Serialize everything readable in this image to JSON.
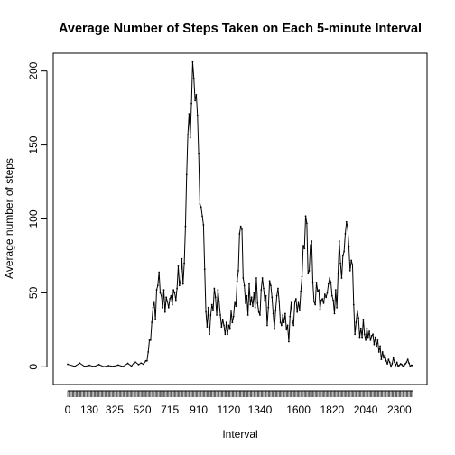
{
  "chart_data": {
    "type": "line",
    "title": "Average Number of Steps Taken on Each 5-minute Interval",
    "xlabel": "Interval",
    "ylabel": "Average number of steps",
    "ylim": [
      -12,
      212
    ],
    "yticks": [
      0,
      50,
      100,
      150,
      200
    ],
    "xtick_labels": [
      "0",
      "130",
      "325",
      "520",
      "715",
      "910",
      "1120",
      "1340",
      "1600",
      "1820",
      "2040",
      "2300"
    ],
    "xtick_positions": [
      1,
      19,
      40,
      63,
      86,
      110,
      135,
      161,
      193,
      221,
      249,
      277
    ],
    "n_intervals": 288,
    "line_color": "#000000",
    "grid": false,
    "series": [
      {
        "points": [
          [
            1,
            1.7
          ],
          [
            7,
            0.3
          ],
          [
            11,
            2.5
          ],
          [
            15,
            0.3
          ],
          [
            19,
            1
          ],
          [
            23,
            0.2
          ],
          [
            27,
            1.5
          ],
          [
            31,
            0.1
          ],
          [
            35,
            0.8
          ],
          [
            39,
            0.3
          ],
          [
            43,
            1.2
          ],
          [
            47,
            0.2
          ],
          [
            51,
            2.3
          ],
          [
            54,
            0.5
          ],
          [
            57,
            3.5
          ],
          [
            60,
            1.5
          ],
          [
            62,
            2.5
          ],
          [
            64,
            1.8
          ],
          [
            66,
            4
          ],
          [
            67,
            4
          ],
          [
            68,
            10
          ],
          [
            69,
            18
          ],
          [
            70,
            18
          ],
          [
            71,
            30
          ],
          [
            72,
            40
          ],
          [
            73,
            44
          ],
          [
            74,
            32
          ],
          [
            75,
            52
          ],
          [
            76,
            55
          ],
          [
            77,
            64
          ],
          [
            78,
            50
          ],
          [
            79,
            48
          ],
          [
            80,
            40
          ],
          [
            81,
            52
          ],
          [
            82,
            37
          ],
          [
            83,
            47
          ],
          [
            84,
            44
          ],
          [
            85,
            40
          ],
          [
            86,
            46
          ],
          [
            87,
            48
          ],
          [
            88,
            42
          ],
          [
            89,
            52
          ],
          [
            90,
            50
          ],
          [
            91,
            45
          ],
          [
            92,
            53
          ],
          [
            93,
            68
          ],
          [
            94,
            55
          ],
          [
            95,
            58
          ],
          [
            96,
            73
          ],
          [
            97,
            56
          ],
          [
            98,
            70
          ],
          [
            99,
            95
          ],
          [
            100,
            130
          ],
          [
            101,
            157
          ],
          [
            102,
            171
          ],
          [
            103,
            155
          ],
          [
            104,
            178
          ],
          [
            105,
            206
          ],
          [
            106,
            195
          ],
          [
            107,
            180
          ],
          [
            108,
            184
          ],
          [
            109,
            170
          ],
          [
            110,
            144
          ],
          [
            111,
            110
          ],
          [
            112,
            108
          ],
          [
            113,
            102
          ],
          [
            114,
            96
          ],
          [
            115,
            66
          ],
          [
            116,
            37
          ],
          [
            117,
            27
          ],
          [
            118,
            40
          ],
          [
            119,
            22
          ],
          [
            120,
            35
          ],
          [
            121,
            42
          ],
          [
            122,
            38
          ],
          [
            123,
            53
          ],
          [
            124,
            47
          ],
          [
            125,
            35
          ],
          [
            126,
            52
          ],
          [
            127,
            44
          ],
          [
            128,
            35
          ],
          [
            129,
            27
          ],
          [
            130,
            32
          ],
          [
            131,
            28
          ],
          [
            132,
            22
          ],
          [
            133,
            30
          ],
          [
            134,
            22
          ],
          [
            135,
            28
          ],
          [
            136,
            26
          ],
          [
            137,
            38
          ],
          [
            138,
            30
          ],
          [
            139,
            34
          ],
          [
            140,
            44
          ],
          [
            141,
            41
          ],
          [
            142,
            58
          ],
          [
            143,
            65
          ],
          [
            144,
            90
          ],
          [
            145,
            95
          ],
          [
            146,
            93
          ],
          [
            147,
            60
          ],
          [
            148,
            55
          ],
          [
            149,
            43
          ],
          [
            150,
            48
          ],
          [
            151,
            35
          ],
          [
            152,
            56
          ],
          [
            153,
            42
          ],
          [
            154,
            47
          ],
          [
            155,
            41
          ],
          [
            156,
            50
          ],
          [
            157,
            40
          ],
          [
            158,
            60
          ],
          [
            159,
            43
          ],
          [
            160,
            37
          ],
          [
            161,
            35
          ],
          [
            162,
            52
          ],
          [
            163,
            60
          ],
          [
            164,
            53
          ],
          [
            165,
            45
          ],
          [
            166,
            48
          ],
          [
            167,
            28
          ],
          [
            168,
            40
          ],
          [
            169,
            58
          ],
          [
            170,
            55
          ],
          [
            171,
            47
          ],
          [
            172,
            36
          ],
          [
            173,
            26
          ],
          [
            174,
            38
          ],
          [
            175,
            48
          ],
          [
            176,
            53
          ],
          [
            177,
            44
          ],
          [
            178,
            30
          ],
          [
            179,
            28
          ],
          [
            180,
            35
          ],
          [
            181,
            30
          ],
          [
            182,
            36
          ],
          [
            183,
            25
          ],
          [
            184,
            28
          ],
          [
            185,
            17
          ],
          [
            186,
            34
          ],
          [
            187,
            44
          ],
          [
            188,
            31
          ],
          [
            189,
            28
          ],
          [
            190,
            44
          ],
          [
            191,
            46
          ],
          [
            192,
            37
          ],
          [
            193,
            44
          ],
          [
            194,
            38
          ],
          [
            195,
            51
          ],
          [
            196,
            61
          ],
          [
            197,
            82
          ],
          [
            198,
            80
          ],
          [
            199,
            102
          ],
          [
            200,
            97
          ],
          [
            201,
            63
          ],
          [
            202,
            65
          ],
          [
            203,
            82
          ],
          [
            204,
            85
          ],
          [
            205,
            57
          ],
          [
            206,
            44
          ],
          [
            207,
            42
          ],
          [
            208,
            57
          ],
          [
            209,
            51
          ],
          [
            210,
            52
          ],
          [
            211,
            39
          ],
          [
            212,
            45
          ],
          [
            213,
            46
          ],
          [
            214,
            43
          ],
          [
            215,
            49
          ],
          [
            216,
            47
          ],
          [
            217,
            50
          ],
          [
            218,
            56
          ],
          [
            219,
            60
          ],
          [
            220,
            57
          ],
          [
            221,
            48
          ],
          [
            222,
            45
          ],
          [
            223,
            36
          ],
          [
            224,
            52
          ],
          [
            225,
            40
          ],
          [
            226,
            63
          ],
          [
            227,
            85
          ],
          [
            228,
            70
          ],
          [
            229,
            60
          ],
          [
            230,
            75
          ],
          [
            231,
            78
          ],
          [
            232,
            90
          ],
          [
            233,
            98
          ],
          [
            234,
            94
          ],
          [
            235,
            81
          ],
          [
            236,
            65
          ],
          [
            237,
            72
          ],
          [
            238,
            69
          ],
          [
            239,
            42
          ],
          [
            240,
            22
          ],
          [
            241,
            30
          ],
          [
            242,
            38
          ],
          [
            243,
            33
          ],
          [
            244,
            20
          ],
          [
            245,
            26
          ],
          [
            246,
            20
          ],
          [
            247,
            32
          ],
          [
            248,
            22
          ],
          [
            249,
            18
          ],
          [
            250,
            26
          ],
          [
            251,
            20
          ],
          [
            252,
            24
          ],
          [
            253,
            18
          ],
          [
            254,
            21
          ],
          [
            255,
            22
          ],
          [
            256,
            15
          ],
          [
            257,
            20
          ],
          [
            258,
            14
          ],
          [
            259,
            18
          ],
          [
            260,
            10
          ],
          [
            261,
            14
          ],
          [
            262,
            5
          ],
          [
            263,
            10
          ],
          [
            264,
            6
          ],
          [
            265,
            8
          ],
          [
            266,
            4
          ],
          [
            267,
            2
          ],
          [
            268,
            5
          ],
          [
            269,
            3
          ],
          [
            270,
            0
          ],
          [
            271,
            2
          ],
          [
            272,
            6
          ],
          [
            273,
            3
          ],
          [
            274,
            1
          ],
          [
            275,
            3
          ],
          [
            276,
            0.5
          ],
          [
            277,
            1
          ],
          [
            278,
            2
          ],
          [
            279,
            1.5
          ],
          [
            280,
            0.5
          ],
          [
            281,
            1
          ],
          [
            282,
            2
          ],
          [
            283,
            3
          ],
          [
            284,
            5
          ],
          [
            285,
            2.5
          ],
          [
            286,
            0.5
          ],
          [
            287,
            1
          ],
          [
            288,
            1
          ]
        ]
      }
    ]
  }
}
